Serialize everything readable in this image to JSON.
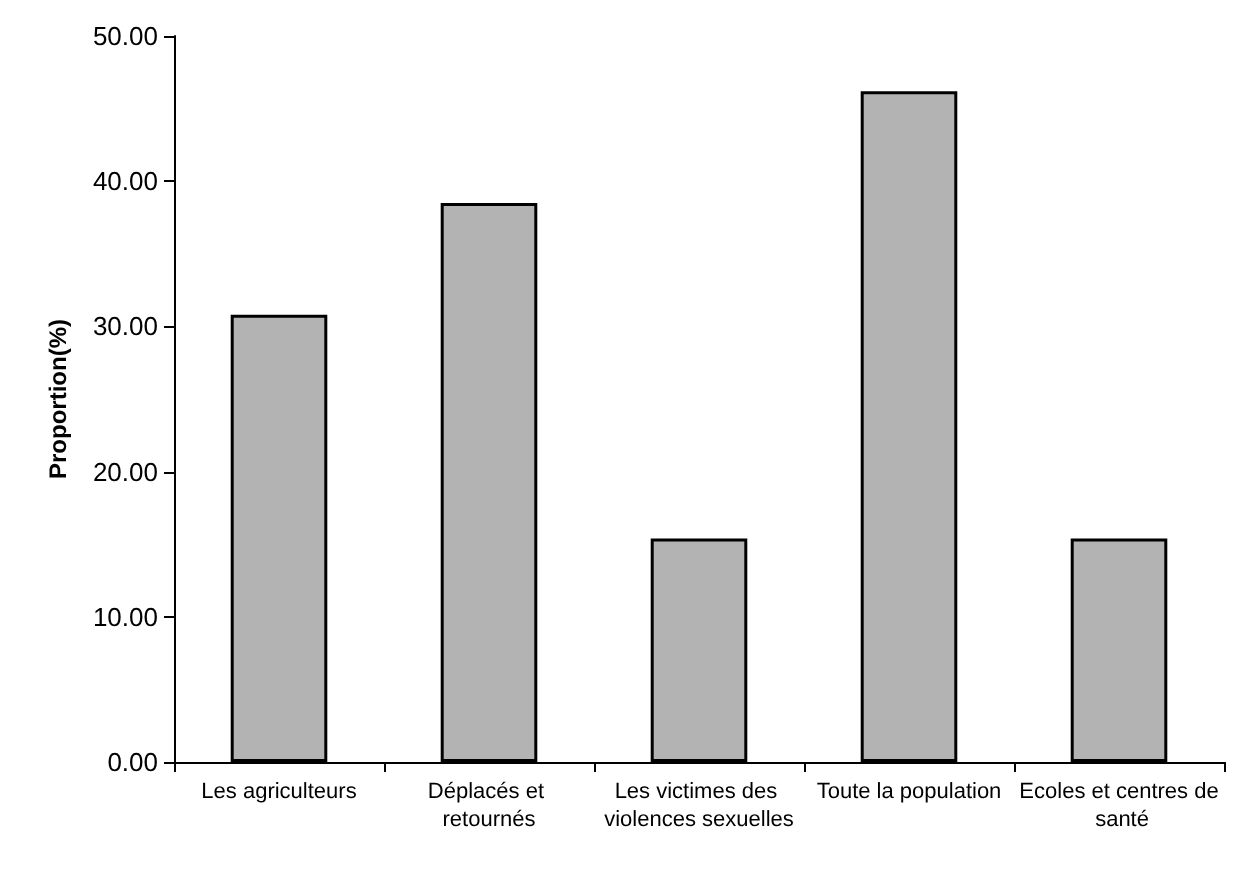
{
  "chart_data": {
    "type": "bar",
    "ylabel": "Proportion(%)",
    "categories": [
      "Les agriculteurs",
      "Déplacés et retournés",
      "Les victimes des violences sexuelles",
      "Toute la population",
      "Ecoles et centres de santé"
    ],
    "values": [
      30.8,
      38.5,
      15.4,
      46.2,
      15.4
    ],
    "color": "#b3b3b3",
    "ylim": [
      0,
      50
    ],
    "yticks": [
      {
        "value": 0,
        "label": "0.00"
      },
      {
        "value": 10,
        "label": "10.00"
      },
      {
        "value": 20,
        "label": "20.00"
      },
      {
        "value": 30,
        "label": "30.00"
      },
      {
        "value": 40,
        "label": "40.00"
      },
      {
        "value": 50,
        "label": "50.00"
      }
    ],
    "grid": false
  }
}
